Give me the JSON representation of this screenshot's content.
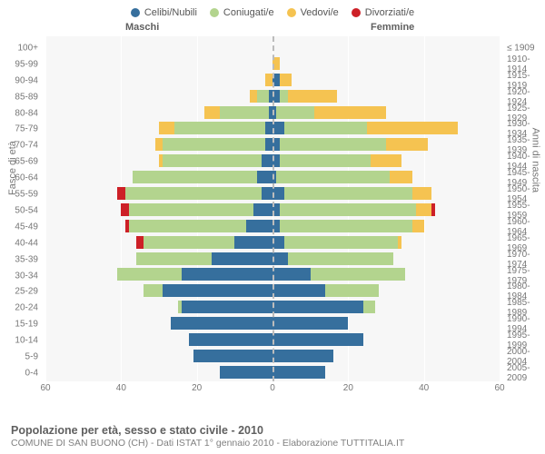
{
  "legend": [
    {
      "label": "Celibi/Nubili",
      "color": "#366f9d"
    },
    {
      "label": "Coniugati/e",
      "color": "#b3d48e"
    },
    {
      "label": "Vedovi/e",
      "color": "#f5c351"
    },
    {
      "label": "Divorziati/e",
      "color": "#cd2027"
    }
  ],
  "header": {
    "male": "Maschi",
    "female": "Femmine"
  },
  "axis": {
    "left_title": "Fasce di età",
    "right_title": "Anni di nascita",
    "x_ticks": [
      60,
      40,
      20,
      0,
      20,
      40,
      60
    ],
    "x_max": 60
  },
  "colors": {
    "plot_bg": "#f7f7f7",
    "grid": "#ffffff",
    "center_dash": "#bcbcbc",
    "text": "#777777"
  },
  "rows": [
    {
      "age": "100+",
      "birth": "≤ 1909",
      "m": {
        "c": 0,
        "co": 0,
        "v": 0,
        "d": 0
      },
      "f": {
        "c": 0,
        "co": 0,
        "v": 0,
        "d": 0
      }
    },
    {
      "age": "95-99",
      "birth": "1910-1914",
      "m": {
        "c": 0,
        "co": 0,
        "v": 0,
        "d": 0
      },
      "f": {
        "c": 0,
        "co": 0,
        "v": 2,
        "d": 0
      }
    },
    {
      "age": "90-94",
      "birth": "1915-1919",
      "m": {
        "c": 0,
        "co": 0,
        "v": 2,
        "d": 0
      },
      "f": {
        "c": 2,
        "co": 0,
        "v": 3,
        "d": 0
      }
    },
    {
      "age": "85-89",
      "birth": "1920-1924",
      "m": {
        "c": 1,
        "co": 3,
        "v": 2,
        "d": 0
      },
      "f": {
        "c": 2,
        "co": 2,
        "v": 13,
        "d": 0
      }
    },
    {
      "age": "80-84",
      "birth": "1925-1929",
      "m": {
        "c": 1,
        "co": 13,
        "v": 4,
        "d": 0
      },
      "f": {
        "c": 1,
        "co": 10,
        "v": 19,
        "d": 0
      }
    },
    {
      "age": "75-79",
      "birth": "1930-1934",
      "m": {
        "c": 2,
        "co": 24,
        "v": 4,
        "d": 0
      },
      "f": {
        "c": 3,
        "co": 22,
        "v": 24,
        "d": 0
      }
    },
    {
      "age": "70-74",
      "birth": "1935-1939",
      "m": {
        "c": 2,
        "co": 27,
        "v": 2,
        "d": 0
      },
      "f": {
        "c": 2,
        "co": 28,
        "v": 11,
        "d": 0
      }
    },
    {
      "age": "65-69",
      "birth": "1940-1944",
      "m": {
        "c": 3,
        "co": 26,
        "v": 1,
        "d": 0
      },
      "f": {
        "c": 2,
        "co": 24,
        "v": 8,
        "d": 0
      }
    },
    {
      "age": "60-64",
      "birth": "1945-1949",
      "m": {
        "c": 4,
        "co": 33,
        "v": 0,
        "d": 0
      },
      "f": {
        "c": 1,
        "co": 30,
        "v": 6,
        "d": 0
      }
    },
    {
      "age": "55-59",
      "birth": "1950-1954",
      "m": {
        "c": 3,
        "co": 36,
        "v": 0,
        "d": 2
      },
      "f": {
        "c": 3,
        "co": 34,
        "v": 5,
        "d": 0
      }
    },
    {
      "age": "50-54",
      "birth": "1955-1959",
      "m": {
        "c": 5,
        "co": 33,
        "v": 0,
        "d": 2
      },
      "f": {
        "c": 2,
        "co": 36,
        "v": 4,
        "d": 1
      }
    },
    {
      "age": "45-49",
      "birth": "1960-1964",
      "m": {
        "c": 7,
        "co": 31,
        "v": 0,
        "d": 1
      },
      "f": {
        "c": 2,
        "co": 35,
        "v": 3,
        "d": 0
      }
    },
    {
      "age": "40-44",
      "birth": "1965-1969",
      "m": {
        "c": 10,
        "co": 24,
        "v": 0,
        "d": 2
      },
      "f": {
        "c": 3,
        "co": 30,
        "v": 1,
        "d": 0
      }
    },
    {
      "age": "35-39",
      "birth": "1970-1974",
      "m": {
        "c": 16,
        "co": 20,
        "v": 0,
        "d": 0
      },
      "f": {
        "c": 4,
        "co": 28,
        "v": 0,
        "d": 0
      }
    },
    {
      "age": "30-34",
      "birth": "1975-1979",
      "m": {
        "c": 24,
        "co": 17,
        "v": 0,
        "d": 0
      },
      "f": {
        "c": 10,
        "co": 25,
        "v": 0,
        "d": 0
      }
    },
    {
      "age": "25-29",
      "birth": "1980-1984",
      "m": {
        "c": 29,
        "co": 5,
        "v": 0,
        "d": 0
      },
      "f": {
        "c": 14,
        "co": 14,
        "v": 0,
        "d": 0
      }
    },
    {
      "age": "20-24",
      "birth": "1985-1989",
      "m": {
        "c": 24,
        "co": 1,
        "v": 0,
        "d": 0
      },
      "f": {
        "c": 24,
        "co": 3,
        "v": 0,
        "d": 0
      }
    },
    {
      "age": "15-19",
      "birth": "1990-1994",
      "m": {
        "c": 27,
        "co": 0,
        "v": 0,
        "d": 0
      },
      "f": {
        "c": 20,
        "co": 0,
        "v": 0,
        "d": 0
      }
    },
    {
      "age": "10-14",
      "birth": "1995-1999",
      "m": {
        "c": 22,
        "co": 0,
        "v": 0,
        "d": 0
      },
      "f": {
        "c": 24,
        "co": 0,
        "v": 0,
        "d": 0
      }
    },
    {
      "age": "5-9",
      "birth": "2000-2004",
      "m": {
        "c": 21,
        "co": 0,
        "v": 0,
        "d": 0
      },
      "f": {
        "c": 16,
        "co": 0,
        "v": 0,
        "d": 0
      }
    },
    {
      "age": "0-4",
      "birth": "2005-2009",
      "m": {
        "c": 14,
        "co": 0,
        "v": 0,
        "d": 0
      },
      "f": {
        "c": 14,
        "co": 0,
        "v": 0,
        "d": 0
      }
    }
  ],
  "footer": {
    "title": "Popolazione per età, sesso e stato civile - 2010",
    "subtitle": "COMUNE DI SAN BUONO (CH) - Dati ISTAT 1° gennaio 2010 - Elaborazione TUTTITALIA.IT"
  }
}
